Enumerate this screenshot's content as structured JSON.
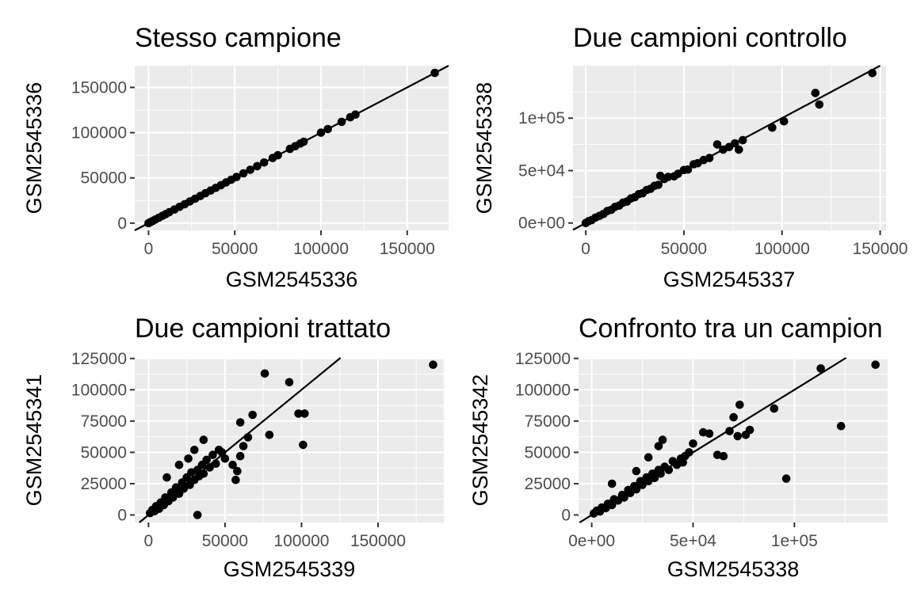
{
  "chart_data": [
    {
      "type": "scatter",
      "title": "Stesso campione",
      "xlabel": "GSM2545336",
      "ylabel": "GSM2545336",
      "xlim": [
        -8000,
        174000
      ],
      "ylim": [
        -8000,
        174000
      ],
      "xticks": [
        0,
        50000,
        100000,
        150000
      ],
      "xtick_labels": [
        "0",
        "50000",
        "100000",
        "150000"
      ],
      "yticks": [
        0,
        50000,
        100000,
        150000
      ],
      "ytick_labels": [
        "0",
        "50000",
        "100000",
        "150000"
      ],
      "reference_line": {
        "intercept": 0,
        "slope": 1
      },
      "points": [
        [
          0,
          0
        ],
        [
          1000,
          1000
        ],
        [
          2500,
          2500
        ],
        [
          4000,
          4000
        ],
        [
          6000,
          6000
        ],
        [
          8000,
          8000
        ],
        [
          10000,
          10000
        ],
        [
          12000,
          12000
        ],
        [
          15000,
          15000
        ],
        [
          18000,
          18000
        ],
        [
          21000,
          21000
        ],
        [
          24000,
          24000
        ],
        [
          27000,
          27000
        ],
        [
          30000,
          30000
        ],
        [
          33000,
          33000
        ],
        [
          36000,
          36000
        ],
        [
          39000,
          39000
        ],
        [
          42000,
          42000
        ],
        [
          45000,
          45000
        ],
        [
          48000,
          48000
        ],
        [
          51000,
          51000
        ],
        [
          55000,
          55000
        ],
        [
          59000,
          59000
        ],
        [
          63000,
          63000
        ],
        [
          67000,
          67000
        ],
        [
          72000,
          72000
        ],
        [
          75000,
          75000
        ],
        [
          82000,
          82000
        ],
        [
          85000,
          85000
        ],
        [
          88000,
          88000
        ],
        [
          90000,
          90000
        ],
        [
          100000,
          100000
        ],
        [
          104000,
          104000
        ],
        [
          112000,
          112000
        ],
        [
          117000,
          117000
        ],
        [
          120000,
          120000
        ],
        [
          166000,
          166000
        ]
      ]
    },
    {
      "type": "scatter",
      "title": "Due campioni controllo",
      "xlabel": "GSM2545337",
      "ylabel": "GSM2545338",
      "xlim": [
        -6500,
        153000
      ],
      "ylim": [
        -7000,
        150000
      ],
      "xticks": [
        0,
        50000,
        100000,
        150000
      ],
      "xtick_labels": [
        "0",
        "50000",
        "100000",
        "150000"
      ],
      "yticks": [
        0,
        50000,
        100000
      ],
      "ytick_labels": [
        "0e+00",
        "5e+04",
        "1e+05"
      ],
      "reference_line": {
        "intercept": 0,
        "slope": 1
      },
      "points": [
        [
          0,
          0
        ],
        [
          1500,
          1800
        ],
        [
          3000,
          2800
        ],
        [
          5000,
          5200
        ],
        [
          7000,
          6800
        ],
        [
          9000,
          8600
        ],
        [
          11000,
          11500
        ],
        [
          13000,
          12600
        ],
        [
          15000,
          15400
        ],
        [
          17000,
          16600
        ],
        [
          19000,
          19500
        ],
        [
          21000,
          20500
        ],
        [
          23000,
          23400
        ],
        [
          25000,
          24600
        ],
        [
          27000,
          27500
        ],
        [
          29000,
          28400
        ],
        [
          31000,
          31500
        ],
        [
          33000,
          32600
        ],
        [
          35000,
          35500
        ],
        [
          37000,
          36400
        ],
        [
          38000,
          45000
        ],
        [
          40000,
          42000
        ],
        [
          42000,
          44000
        ],
        [
          45000,
          44500
        ],
        [
          47000,
          47000
        ],
        [
          50000,
          50500
        ],
        [
          52000,
          51000
        ],
        [
          55000,
          56000
        ],
        [
          57000,
          57000
        ],
        [
          60000,
          60000
        ],
        [
          63000,
          62000
        ],
        [
          67000,
          75000
        ],
        [
          70000,
          70000
        ],
        [
          73000,
          72500
        ],
        [
          76000,
          76000
        ],
        [
          78000,
          70000
        ],
        [
          80000,
          79000
        ],
        [
          95000,
          91000
        ],
        [
          101000,
          97000
        ],
        [
          117000,
          124000
        ],
        [
          119000,
          113000
        ],
        [
          146000,
          143000
        ]
      ]
    },
    {
      "type": "scatter",
      "title": "Due campioni trattato",
      "xlabel": "GSM2545339",
      "ylabel": "GSM2545341",
      "xlim": [
        -9000,
        193000
      ],
      "ylim": [
        -6000,
        125500
      ],
      "xticks": [
        0,
        50000,
        100000,
        150000
      ],
      "xtick_labels": [
        "0",
        "50000",
        "100000",
        "150000"
      ],
      "yticks": [
        0,
        25000,
        50000,
        75000,
        100000,
        125000
      ],
      "ytick_labels": [
        "0",
        "25000",
        "50000",
        "75000",
        "100000",
        "125000"
      ],
      "reference_line": {
        "intercept": 0,
        "slope": 1
      },
      "points": [
        [
          1000,
          1500
        ],
        [
          2500,
          4000
        ],
        [
          4000,
          3000
        ],
        [
          5000,
          7000
        ],
        [
          7000,
          5000
        ],
        [
          8000,
          10000
        ],
        [
          10000,
          8000
        ],
        [
          11000,
          14000
        ],
        [
          13000,
          11000
        ],
        [
          15000,
          18000
        ],
        [
          16000,
          14000
        ],
        [
          18000,
          22000
        ],
        [
          20000,
          17000
        ],
        [
          22000,
          26000
        ],
        [
          23000,
          21000
        ],
        [
          25000,
          30000
        ],
        [
          27000,
          24000
        ],
        [
          28000,
          34000
        ],
        [
          30000,
          28000
        ],
        [
          32000,
          36000
        ],
        [
          33000,
          31000
        ],
        [
          35000,
          40000
        ],
        [
          36000,
          33000
        ],
        [
          38000,
          44000
        ],
        [
          40000,
          38000
        ],
        [
          42000,
          48000
        ],
        [
          44000,
          41000
        ],
        [
          46000,
          52000
        ],
        [
          48000,
          50000
        ],
        [
          50000,
          45000
        ],
        [
          12000,
          30000
        ],
        [
          20000,
          40000
        ],
        [
          26000,
          45000
        ],
        [
          30000,
          52000
        ],
        [
          36000,
          60000
        ],
        [
          55000,
          40000
        ],
        [
          58000,
          35000
        ],
        [
          60000,
          47000
        ],
        [
          62000,
          55000
        ],
        [
          65000,
          62000
        ],
        [
          68000,
          80000
        ],
        [
          57000,
          28000
        ],
        [
          60000,
          74000
        ],
        [
          76000,
          113000
        ],
        [
          79000,
          64000
        ],
        [
          92000,
          106000
        ],
        [
          98000,
          81000
        ],
        [
          102000,
          81000
        ],
        [
          101000,
          56000
        ],
        [
          32000,
          0
        ],
        [
          186000,
          120000
        ]
      ]
    },
    {
      "type": "scatter",
      "title": "Confronto tra un campion",
      "xlabel": "GSM2545338",
      "ylabel": "GSM2545342",
      "xlim": [
        -6500,
        146000
      ],
      "ylim": [
        -6000,
        125500
      ],
      "xticks": [
        0,
        50000,
        100000
      ],
      "xtick_labels": [
        "0e+00",
        "5e+04",
        "1e+05"
      ],
      "yticks": [
        0,
        25000,
        50000,
        75000,
        100000,
        125000
      ],
      "ytick_labels": [
        "0",
        "25000",
        "50000",
        "75000",
        "100000",
        "125000"
      ],
      "reference_line": {
        "intercept": 0,
        "slope": 1
      },
      "points": [
        [
          1000,
          1200
        ],
        [
          2500,
          3500
        ],
        [
          4000,
          2800
        ],
        [
          5000,
          6000
        ],
        [
          7000,
          5500
        ],
        [
          8000,
          9000
        ],
        [
          10000,
          8000
        ],
        [
          11000,
          12500
        ],
        [
          13000,
          11500
        ],
        [
          15000,
          16000
        ],
        [
          16000,
          14000
        ],
        [
          18000,
          20000
        ],
        [
          19000,
          17500
        ],
        [
          21000,
          23000
        ],
        [
          22000,
          20500
        ],
        [
          24000,
          27000
        ],
        [
          25000,
          24000
        ],
        [
          27000,
          30000
        ],
        [
          28000,
          27000
        ],
        [
          30000,
          33000
        ],
        [
          31000,
          29500
        ],
        [
          33000,
          36000
        ],
        [
          34000,
          33000
        ],
        [
          36000,
          38500
        ],
        [
          38000,
          36000
        ],
        [
          40000,
          43000
        ],
        [
          42000,
          40000
        ],
        [
          44000,
          45000
        ],
        [
          46000,
          47000
        ],
        [
          48000,
          50000
        ],
        [
          10000,
          25000
        ],
        [
          22000,
          35000
        ],
        [
          28000,
          46000
        ],
        [
          33000,
          55000
        ],
        [
          35000,
          60000
        ],
        [
          45000,
          42000
        ],
        [
          50000,
          57000
        ],
        [
          55000,
          66000
        ],
        [
          58000,
          65000
        ],
        [
          62000,
          48000
        ],
        [
          65000,
          47000
        ],
        [
          68000,
          67000
        ],
        [
          70000,
          78000
        ],
        [
          72000,
          63000
        ],
        [
          73000,
          88000
        ],
        [
          76000,
          64000
        ],
        [
          78000,
          68000
        ],
        [
          90000,
          85000
        ],
        [
          96000,
          29000
        ],
        [
          113000,
          117000
        ],
        [
          123000,
          71000
        ],
        [
          140000,
          120000
        ]
      ]
    }
  ]
}
